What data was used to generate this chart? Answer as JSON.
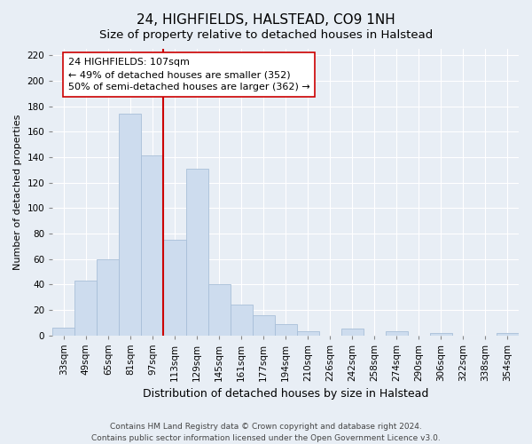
{
  "title": "24, HIGHFIELDS, HALSTEAD, CO9 1NH",
  "subtitle": "Size of property relative to detached houses in Halstead",
  "xlabel": "Distribution of detached houses by size in Halstead",
  "ylabel": "Number of detached properties",
  "bar_labels": [
    "33sqm",
    "49sqm",
    "65sqm",
    "81sqm",
    "97sqm",
    "113sqm",
    "129sqm",
    "145sqm",
    "161sqm",
    "177sqm",
    "194sqm",
    "210sqm",
    "226sqm",
    "242sqm",
    "258sqm",
    "274sqm",
    "290sqm",
    "306sqm",
    "322sqm",
    "338sqm",
    "354sqm"
  ],
  "bar_values": [
    6,
    43,
    60,
    174,
    141,
    75,
    131,
    40,
    24,
    16,
    9,
    3,
    0,
    5,
    0,
    3,
    0,
    2,
    0,
    0,
    2
  ],
  "bar_color": "#cddcee",
  "bar_edge_color": "#a8bfd8",
  "vline_color": "#cc0000",
  "annotation_text": "24 HIGHFIELDS: 107sqm\n← 49% of detached houses are smaller (352)\n50% of semi-detached houses are larger (362) →",
  "annotation_box_color": "#ffffff",
  "annotation_box_edge": "#cc0000",
  "ylim": [
    0,
    225
  ],
  "yticks": [
    0,
    20,
    40,
    60,
    80,
    100,
    120,
    140,
    160,
    180,
    200,
    220
  ],
  "footer_line1": "Contains HM Land Registry data © Crown copyright and database right 2024.",
  "footer_line2": "Contains public sector information licensed under the Open Government Licence v3.0.",
  "background_color": "#e8eef5",
  "plot_bg_color": "#e8eef5",
  "grid_color": "#ffffff",
  "title_fontsize": 11,
  "subtitle_fontsize": 9.5,
  "xlabel_fontsize": 9,
  "ylabel_fontsize": 8,
  "tick_fontsize": 7.5,
  "annotation_fontsize": 8,
  "footer_fontsize": 6.5,
  "vline_bar_index": 5
}
